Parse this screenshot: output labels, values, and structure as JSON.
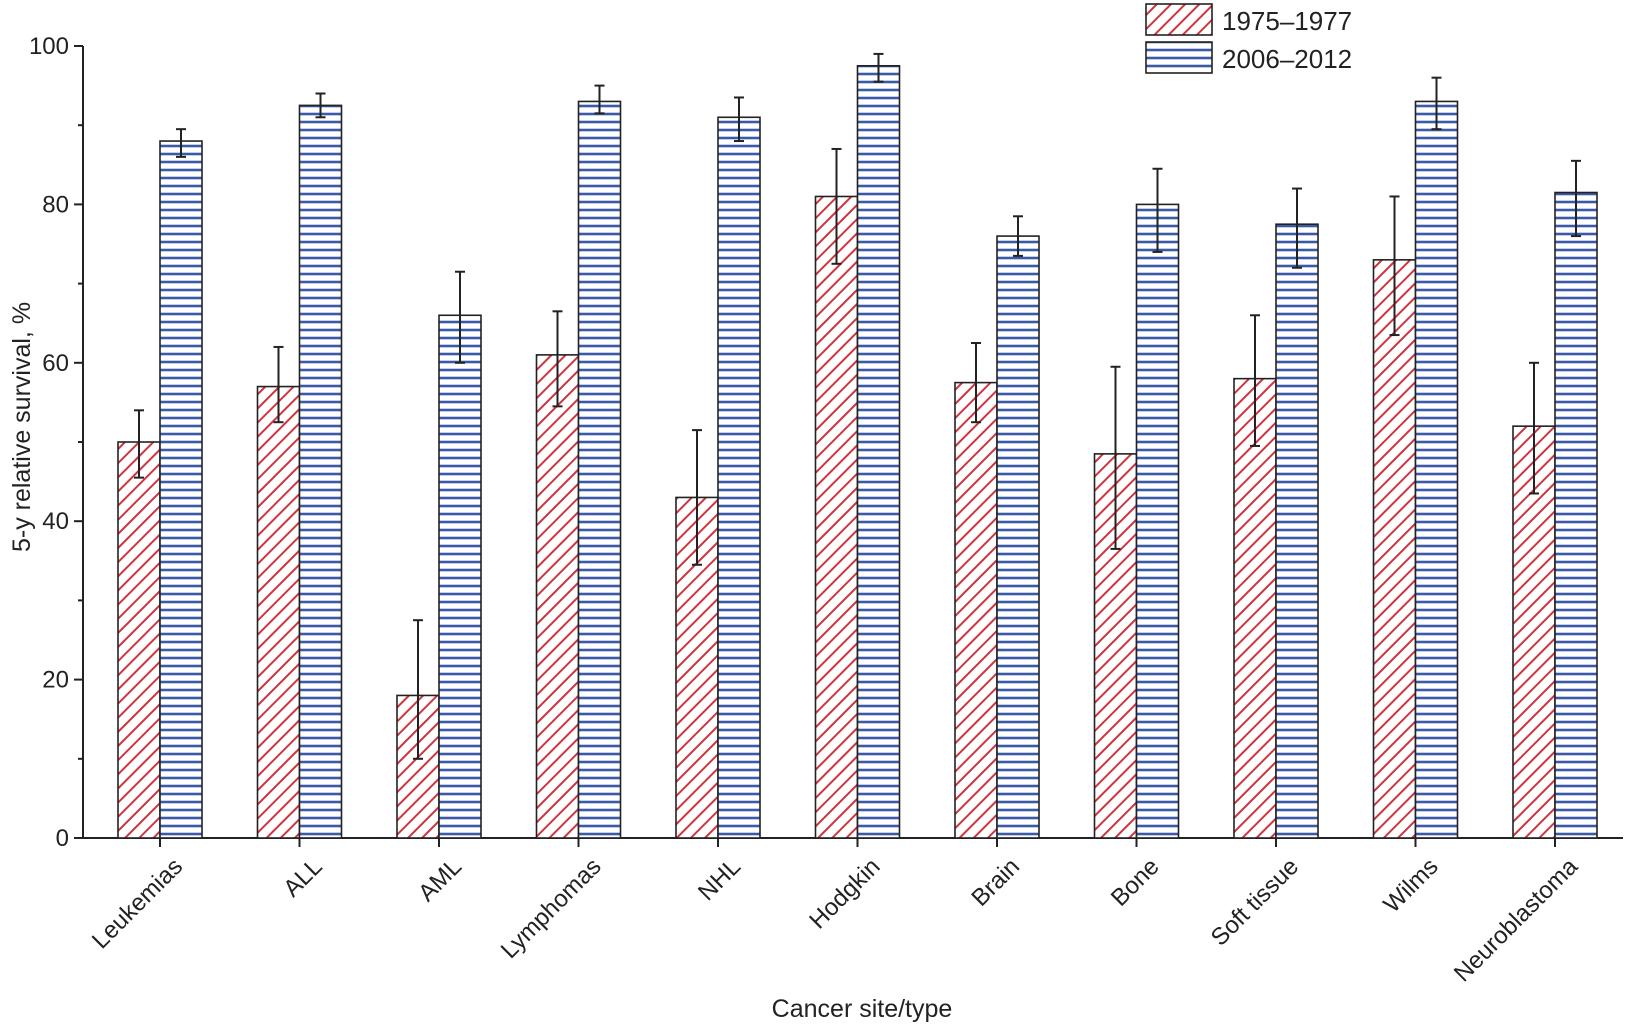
{
  "chart_data": {
    "type": "bar",
    "xlabel": "Cancer site/type",
    "ylabel": "5-y relative survival, %",
    "ylim": [
      0,
      100
    ],
    "yticks": [
      0,
      20,
      40,
      60,
      80,
      100
    ],
    "categories": [
      "Leukemias",
      "ALL",
      "AML",
      "Lymphomas",
      "NHL",
      "Hodgkin",
      "Brain",
      "Bone",
      "Soft tissue",
      "Wilms",
      "Neuroblastoma"
    ],
    "series": [
      {
        "name": "1975–1977",
        "color": "#d0343f",
        "pattern": "diagonal-hatch",
        "values": [
          50,
          57,
          18,
          61,
          43,
          81,
          57.5,
          48.5,
          58,
          73,
          52
        ],
        "error_low": [
          45.5,
          52.5,
          10,
          54.5,
          34.5,
          72.5,
          52.5,
          36.5,
          49.5,
          63.5,
          43.5
        ],
        "error_high": [
          54,
          62,
          27.5,
          66.5,
          51.5,
          87,
          62.5,
          59.5,
          66,
          81,
          60
        ]
      },
      {
        "name": "2006–2012",
        "color": "#3a5aa8",
        "pattern": "horizontal-lines",
        "values": [
          88,
          92.5,
          66,
          93,
          91,
          97.5,
          76,
          80,
          77.5,
          93,
          81.5
        ],
        "error_low": [
          86,
          91,
          60,
          91.5,
          88,
          95.5,
          73.5,
          74,
          72,
          89.5,
          76
        ],
        "error_high": [
          89.5,
          94,
          71.5,
          95,
          93.5,
          99,
          78.5,
          84.5,
          82,
          96,
          85.5
        ]
      }
    ],
    "legend_position": "top-right",
    "grid": false
  }
}
